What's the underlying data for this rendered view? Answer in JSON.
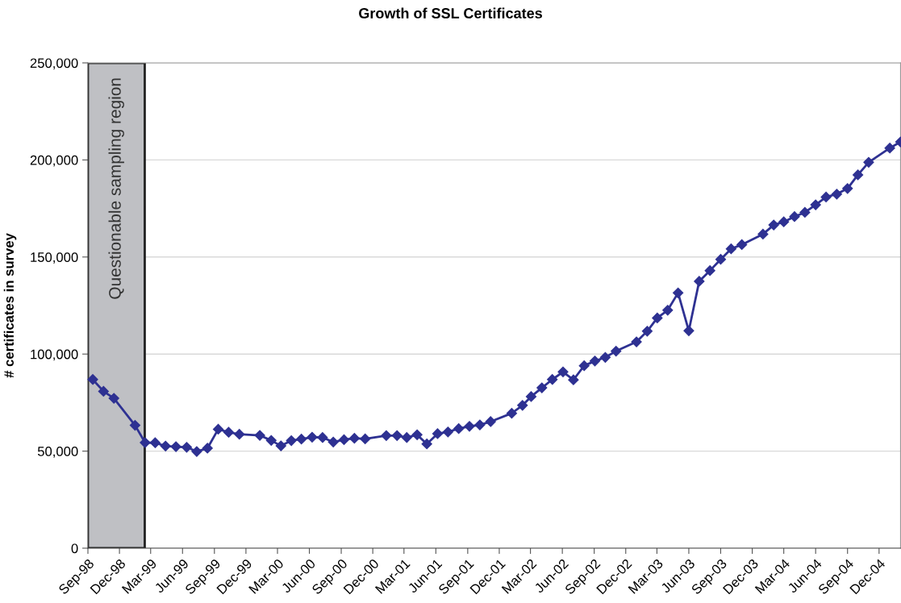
{
  "chart_data": {
    "type": "line",
    "title": "Growth of SSL Certificates",
    "ylabel": "# certificates in survey",
    "x": [
      "1998-09-15",
      "1998-10-16",
      "1998-11-15",
      "1999-01-15",
      "1999-02-13",
      "1999-03-14",
      "1999-04-13",
      "1999-05-13",
      "1999-06-13",
      "1999-07-12",
      "1999-08-12",
      "1999-09-12",
      "1999-10-12",
      "1999-11-12",
      "2000-01-10",
      "2000-02-12",
      "2000-03-11",
      "2000-04-10",
      "2000-05-09",
      "2000-06-09",
      "2000-07-09",
      "2000-08-09",
      "2000-09-09",
      "2000-10-09",
      "2000-11-09",
      "2001-01-09",
      "2001-02-09",
      "2001-03-09",
      "2001-04-08",
      "2001-05-06",
      "2001-06-06",
      "2001-07-06",
      "2001-08-06",
      "2001-09-06",
      "2001-10-06",
      "2001-11-06",
      "2002-01-06",
      "2002-02-06",
      "2002-03-03",
      "2002-04-03",
      "2002-05-03",
      "2002-06-03",
      "2002-07-03",
      "2002-08-03",
      "2002-09-03",
      "2002-10-03",
      "2002-11-03",
      "2003-01-01",
      "2003-02-01",
      "2003-03-02",
      "2003-04-01",
      "2003-05-01",
      "2003-06-01",
      "2003-07-01",
      "2003-08-01",
      "2003-09-01",
      "2003-10-01",
      "2003-11-01",
      "2004-01-01",
      "2004-02-01",
      "2004-03-01",
      "2004-04-01",
      "2004-05-01",
      "2004-06-01",
      "2004-07-01",
      "2004-08-01",
      "2004-09-01",
      "2004-10-01",
      "2004-11-01",
      "2005-01-01",
      "2005-02-01"
    ],
    "series": [
      {
        "color": "#2e3192",
        "values": [
          86900,
          80800,
          77200,
          63300,
          54400,
          54300,
          52600,
          52300,
          52000,
          49800,
          51500,
          61300,
          59700,
          58700,
          58100,
          55500,
          52700,
          55400,
          56200,
          57200,
          57000,
          54700,
          55900,
          56600,
          56300,
          58000,
          58000,
          57000,
          58400,
          53700,
          59000,
          59900,
          61600,
          62800,
          63500,
          65200,
          69500,
          73600,
          78100,
          82600,
          86900,
          90800,
          86700,
          94000,
          96400,
          98300,
          101500,
          106300,
          111800,
          118600,
          122600,
          131500,
          112000,
          137500,
          143000,
          148800,
          154200,
          156400,
          161800,
          166500,
          168100,
          170800,
          173000,
          176900,
          180900,
          182400,
          185300,
          192300,
          198800,
          206100,
          209300
        ]
      }
    ],
    "xlim": [
      "1998-09-01",
      "2005-02-01"
    ],
    "xticks": [
      {
        "value": "1998-09-01",
        "label": "Sep-98"
      },
      {
        "value": "1998-12-01",
        "label": "Dec-98"
      },
      {
        "value": "1999-03-01",
        "label": "Mar-99"
      },
      {
        "value": "1999-06-01",
        "label": "Jun-99"
      },
      {
        "value": "1999-09-01",
        "label": "Sep-99"
      },
      {
        "value": "1999-12-01",
        "label": "Dec-99"
      },
      {
        "value": "2000-03-01",
        "label": "Mar-00"
      },
      {
        "value": "2000-06-01",
        "label": "Jun-00"
      },
      {
        "value": "2000-09-01",
        "label": "Sep-00"
      },
      {
        "value": "2000-12-01",
        "label": "Dec-00"
      },
      {
        "value": "2001-03-01",
        "label": "Mar-01"
      },
      {
        "value": "2001-06-01",
        "label": "Jun-01"
      },
      {
        "value": "2001-09-01",
        "label": "Sep-01"
      },
      {
        "value": "2001-12-01",
        "label": "Dec-01"
      },
      {
        "value": "2002-03-01",
        "label": "Mar-02"
      },
      {
        "value": "2002-06-01",
        "label": "Jun-02"
      },
      {
        "value": "2002-09-01",
        "label": "Sep-02"
      },
      {
        "value": "2002-12-01",
        "label": "Dec-02"
      },
      {
        "value": "2003-03-01",
        "label": "Mar-03"
      },
      {
        "value": "2003-06-01",
        "label": "Jun-03"
      },
      {
        "value": "2003-09-01",
        "label": "Sep-03"
      },
      {
        "value": "2003-12-01",
        "label": "Dec-03"
      },
      {
        "value": "2004-03-01",
        "label": "Mar-04"
      },
      {
        "value": "2004-06-01",
        "label": "Jun-04"
      },
      {
        "value": "2004-09-01",
        "label": "Sep-04"
      },
      {
        "value": "2004-12-01",
        "label": "Dec-04"
      }
    ],
    "ylim": [
      0,
      250000
    ],
    "yticks": [
      {
        "value": 0,
        "label": "0"
      },
      {
        "value": 50000,
        "label": "50,000"
      },
      {
        "value": 100000,
        "label": "100,000"
      },
      {
        "value": 150000,
        "label": "150,000"
      },
      {
        "value": 200000,
        "label": "200,000"
      },
      {
        "value": 250000,
        "label": "250,000"
      }
    ],
    "bands": [
      {
        "axis": "x",
        "from": "1998-09-01",
        "to": "1999-02-12",
        "label": "Questionable sampling region",
        "color": "#bfc0c4"
      }
    ],
    "grid": "y",
    "marker": "diamond",
    "line_style": "solid",
    "legend": false
  }
}
